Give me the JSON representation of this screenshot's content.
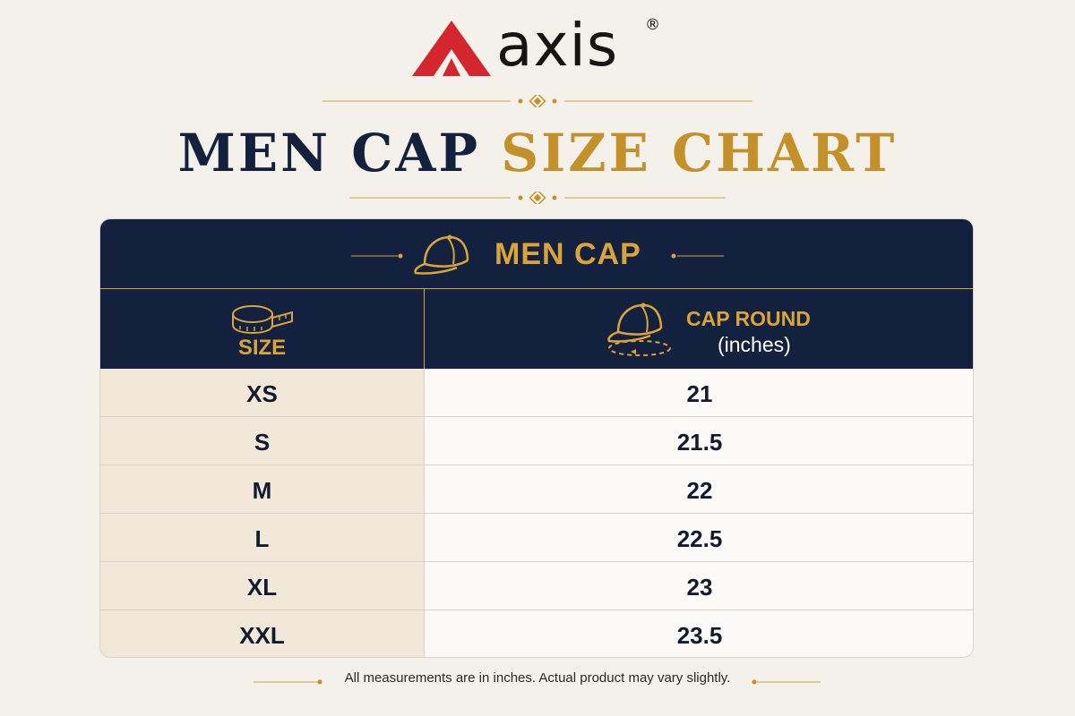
{
  "brand": {
    "name": "axis",
    "registered": "®",
    "logo_color": "#d3262e"
  },
  "title": {
    "part1": "MEN CAP",
    "part2": "SIZE CHART",
    "color_dark": "#14213d",
    "color_gold": "#c4902a"
  },
  "table": {
    "banner_label": "MEN CAP",
    "banner_icon": "cap-icon",
    "columns": [
      {
        "label": "SIZE",
        "icon": "measuring-tape-icon"
      },
      {
        "label": "CAP ROUND",
        "sublabel": "(inches)",
        "icon": "cap-round-icon"
      }
    ],
    "rows": [
      {
        "size": "XS",
        "round": "21"
      },
      {
        "size": "S",
        "round": "21.5"
      },
      {
        "size": "M",
        "round": "22"
      },
      {
        "size": "L",
        "round": "22.5"
      },
      {
        "size": "XL",
        "round": "23"
      },
      {
        "size": "XXL",
        "round": "23.5"
      }
    ]
  },
  "footnote": "All measurements are in inches. Actual product may vary slightly."
}
